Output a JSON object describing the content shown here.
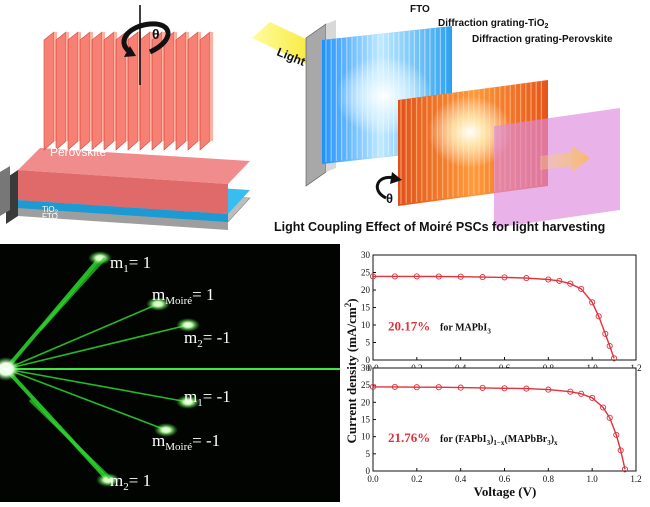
{
  "schematic": {
    "perovskite_label": "Perovskite",
    "tio2_label": "TiO",
    "tio2_sub": "2",
    "fto_label": "FTO",
    "rotation_label": "θ"
  },
  "grating_panel": {
    "light_label": "Light",
    "fto_label": "FTO",
    "tio2_grating_label": "Diffraction grating-TiO",
    "tio2_grating_sub": "2",
    "perovskite_grating_label": "Diffraction grating-Perovskite",
    "angle_label": "θ",
    "caption": "Light Coupling Effect of Moiré PSCs for light harvesting"
  },
  "diffraction": {
    "labels": [
      {
        "base": "m",
        "sub": "1",
        "value": "= 1"
      },
      {
        "base": "m",
        "sub": "Moiré",
        "value": "= 1"
      },
      {
        "base": "m",
        "sub": "2",
        "value": "= -1"
      },
      {
        "base": "m",
        "sub": "1",
        "value": "= -1"
      },
      {
        "base": "m",
        "sub": "Moiré",
        "value": "= -1"
      },
      {
        "base": "m",
        "sub": "2",
        "value": "= 1"
      }
    ]
  },
  "chart_data": {
    "type": "line",
    "xlabel": "Voltage (V)",
    "ylabel": "Current density (mA/cm²)",
    "ylabel_base": "Current density (mA/cm",
    "ylabel_sup": "2",
    "ylabel_tail": ")",
    "xlim": [
      0.0,
      1.2
    ],
    "ylim": [
      0,
      30
    ],
    "x_ticks": [
      "0.0",
      "0.2",
      "0.4",
      "0.6",
      "0.8",
      "1.0",
      "1.2"
    ],
    "y_ticks": [
      "0",
      "5",
      "10",
      "15",
      "20",
      "25",
      "30"
    ],
    "color": "#e0323a",
    "panels": [
      {
        "efficiency": "20.17%",
        "label_pre": "for MAPbI",
        "label_sub": "3",
        "series": {
          "name": "MAPbI3",
          "x": [
            0.0,
            0.1,
            0.2,
            0.3,
            0.4,
            0.5,
            0.6,
            0.7,
            0.8,
            0.85,
            0.9,
            0.95,
            1.0,
            1.03,
            1.06,
            1.08,
            1.1
          ],
          "y": [
            23.9,
            23.9,
            23.9,
            23.85,
            23.8,
            23.7,
            23.6,
            23.4,
            23.0,
            22.6,
            21.8,
            20.3,
            16.5,
            12.5,
            7.5,
            4.0,
            0.5
          ]
        }
      },
      {
        "efficiency": "21.76%",
        "label_pre": "for (FAPbI",
        "label_sub1": "3",
        "label_mid1": ")",
        "label_sub2": "1−x",
        "label_mid2": "(MAPbBr",
        "label_sub3": "3",
        "label_mid3": ")",
        "label_sub4": "x",
        "series": {
          "name": "(FAPbI3)1-x(MAPbBr3)x",
          "x": [
            0.0,
            0.1,
            0.2,
            0.3,
            0.4,
            0.5,
            0.6,
            0.7,
            0.8,
            0.9,
            0.95,
            1.0,
            1.05,
            1.08,
            1.11,
            1.13,
            1.15
          ],
          "y": [
            24.5,
            24.5,
            24.4,
            24.4,
            24.3,
            24.2,
            24.1,
            24.0,
            23.7,
            23.1,
            22.5,
            21.3,
            18.5,
            15.5,
            10.5,
            6.0,
            0.5
          ]
        }
      }
    ]
  }
}
